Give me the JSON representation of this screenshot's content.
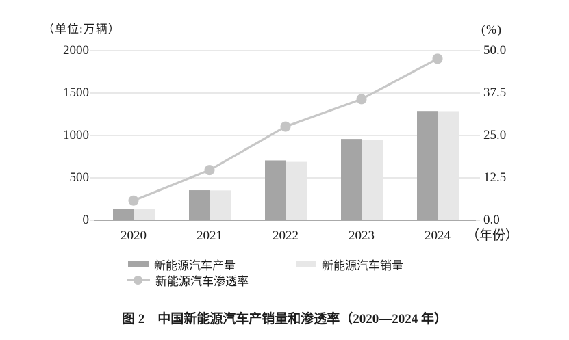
{
  "chart_data": {
    "type": "combo-bar-line",
    "title": "图 2　中国新能源汽车产销量和渗透率（2020—2024 年）",
    "categories": [
      "2020",
      "2021",
      "2022",
      "2023",
      "2024"
    ],
    "series": [
      {
        "name": "新能源汽车产量",
        "type": "bar",
        "axis": "left",
        "values": [
          136.6,
          354.5,
          705.8,
          958.7,
          1288.8
        ]
      },
      {
        "name": "新能源汽车销量",
        "type": "bar",
        "axis": "left",
        "values": [
          136.7,
          352.1,
          688.7,
          949.5,
          1286.6
        ]
      },
      {
        "name": "新能源汽车渗透率",
        "type": "line",
        "axis": "right",
        "values": [
          5.8,
          14.8,
          27.6,
          35.7,
          47.6
        ]
      }
    ],
    "left_axis": {
      "unit_label": "（单位:万辆）",
      "min": 0,
      "max": 2000,
      "tick_values": [
        2000,
        1500,
        1000,
        500,
        0
      ],
      "tick_labels": [
        "2000",
        "1500",
        "1000",
        "500",
        "0"
      ]
    },
    "right_axis": {
      "unit_label": "(%)",
      "min": 0,
      "max": 50,
      "tick_values": [
        50,
        37.5,
        25,
        12.5,
        0
      ],
      "tick_labels": [
        "50.0",
        "37.5",
        "25.0",
        "12.5",
        "0.0"
      ]
    },
    "x_axis": {
      "suffix": "（年份）"
    },
    "legend": [
      {
        "label": "新能源汽车产量",
        "swatch": "bar-dark"
      },
      {
        "label": "新能源汽车销量",
        "swatch": "bar-light"
      },
      {
        "label": "新能源汽车渗透率",
        "swatch": "line-marker"
      }
    ],
    "legend_position": "bottom",
    "grid": true,
    "colors": {
      "production": "#a5a5a5",
      "sales": "#e7e7e7",
      "line": "#c7c7c7",
      "marker": "#c4c4c4",
      "gridline": "#d0d0d0",
      "axis_line": "#8e8e8e",
      "text": "#1c1c1c"
    }
  }
}
